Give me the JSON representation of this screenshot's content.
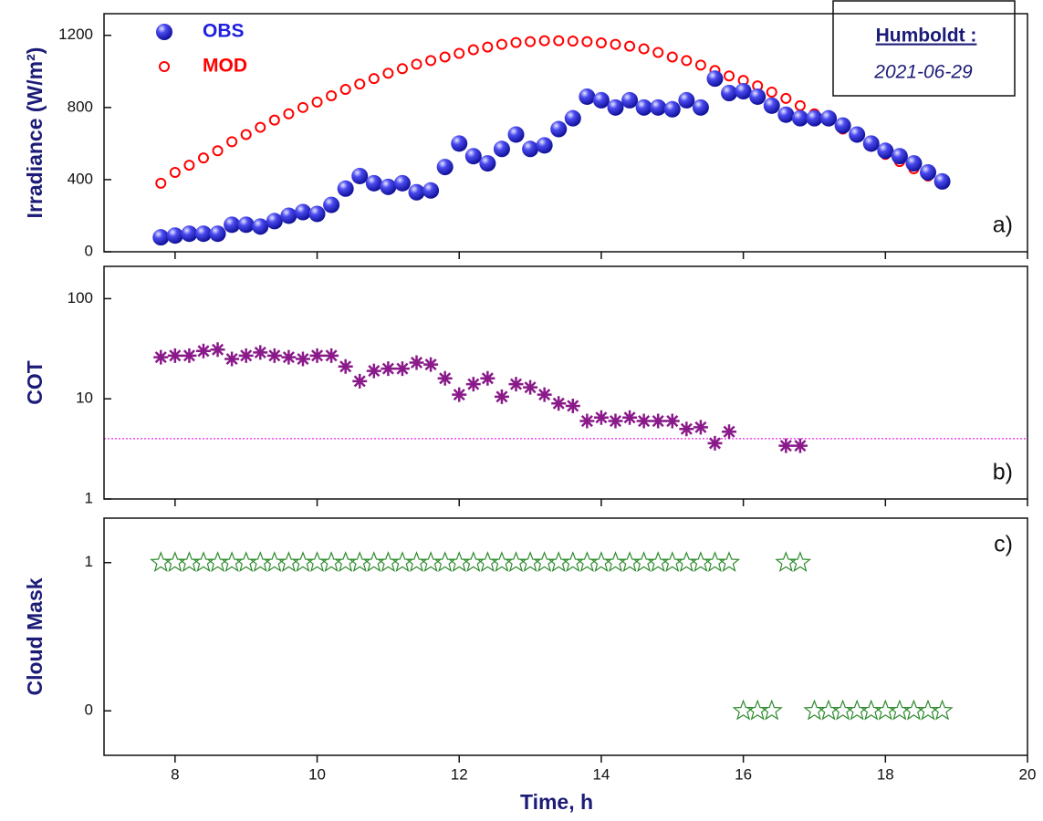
{
  "chart_data": [
    {
      "type": "scatter",
      "ylabel": "Irradiance (W/m²)",
      "panel_label": "a)",
      "station": "Humboldt :",
      "date": "2021-06-29",
      "xlim": [
        7,
        20
      ],
      "xticks": [
        8,
        10,
        12,
        14,
        16,
        18,
        20
      ],
      "ylim": [
        0,
        1320
      ],
      "yticks": [
        0,
        400,
        800,
        1200
      ],
      "x": [
        7.8,
        8.0,
        8.2,
        8.4,
        8.6,
        8.8,
        9.0,
        9.2,
        9.4,
        9.6,
        9.8,
        10.0,
        10.2,
        10.4,
        10.6,
        10.8,
        11.0,
        11.2,
        11.4,
        11.6,
        11.8,
        12.0,
        12.2,
        12.4,
        12.6,
        12.8,
        13.0,
        13.2,
        13.4,
        13.6,
        13.8,
        14.0,
        14.2,
        14.4,
        14.6,
        14.8,
        15.0,
        15.2,
        15.4,
        15.6,
        15.8,
        16.0,
        16.2,
        16.4,
        16.6,
        16.8,
        17.0,
        17.2,
        17.4,
        17.6,
        17.8,
        18.0,
        18.2,
        18.4,
        18.6,
        18.8
      ],
      "series": [
        {
          "name": "MOD",
          "color": "#ff0000",
          "marker": "circle",
          "values": [
            380,
            440,
            480,
            520,
            560,
            610,
            650,
            690,
            730,
            765,
            800,
            830,
            865,
            900,
            930,
            960,
            990,
            1015,
            1040,
            1060,
            1080,
            1100,
            1120,
            1135,
            1150,
            1160,
            1165,
            1170,
            1170,
            1168,
            1165,
            1158,
            1150,
            1140,
            1125,
            1105,
            1080,
            1060,
            1035,
            1005,
            975,
            950,
            920,
            885,
            850,
            810,
            765,
            725,
            680,
            635,
            585,
            540,
            500,
            460,
            420,
            390
          ]
        },
        {
          "name": "OBS",
          "color": "#2020e0",
          "marker": "sphere",
          "values": [
            80,
            90,
            100,
            100,
            100,
            150,
            150,
            140,
            170,
            200,
            220,
            210,
            260,
            350,
            420,
            380,
            360,
            380,
            330,
            340,
            470,
            600,
            530,
            490,
            570,
            650,
            570,
            590,
            680,
            740,
            860,
            840,
            800,
            840,
            800,
            800,
            790,
            840,
            800,
            960,
            880,
            890,
            860,
            810,
            760,
            740,
            740,
            740,
            700,
            650,
            600,
            560,
            530,
            490,
            440,
            390
          ]
        }
      ]
    },
    {
      "type": "scatter",
      "ylabel": "COT",
      "panel_label": "b)",
      "yscale": "log",
      "xlim": [
        7,
        20
      ],
      "xticks": [
        8,
        10,
        12,
        14,
        16,
        18,
        20
      ],
      "ylim": [
        1,
        210
      ],
      "yticks": [
        1,
        10,
        100
      ],
      "hline": 4,
      "hline_color": "#ee22ee",
      "x": [
        7.8,
        8.0,
        8.2,
        8.4,
        8.6,
        8.8,
        9.0,
        9.2,
        9.4,
        9.6,
        9.8,
        10.0,
        10.2,
        10.4,
        10.6,
        10.8,
        11.0,
        11.2,
        11.4,
        11.6,
        11.8,
        12.0,
        12.2,
        12.4,
        12.6,
        12.8,
        13.0,
        13.2,
        13.4,
        13.6,
        13.8,
        14.0,
        14.2,
        14.4,
        14.6,
        14.8,
        15.0,
        15.2,
        15.4,
        15.6,
        15.8,
        16.0,
        16.2,
        16.4,
        16.6,
        16.8
      ],
      "series": [
        {
          "color": "#8a1a8a",
          "marker": "asterisk",
          "values": [
            26,
            27,
            27,
            30,
            31,
            25,
            27,
            29,
            27,
            26,
            25,
            27,
            27,
            21,
            15,
            19,
            20,
            20,
            23,
            22,
            16,
            11,
            14,
            16,
            10.5,
            14,
            13,
            11,
            9,
            8.5,
            6,
            6.5,
            6,
            6.5,
            6,
            6,
            6,
            5,
            5.2,
            3.6,
            4.7,
            null,
            null,
            null,
            3.4,
            3.4
          ]
        }
      ]
    },
    {
      "type": "scatter",
      "ylabel": "Cloud Mask",
      "xlabel": "Time, h",
      "panel_label": "c)",
      "xlim": [
        7,
        20
      ],
      "xticks": [
        8,
        10,
        12,
        14,
        16,
        18,
        20
      ],
      "ylim": [
        -0.3,
        1.3
      ],
      "yticks": [
        0,
        1
      ],
      "x": [
        7.8,
        8.0,
        8.2,
        8.4,
        8.6,
        8.8,
        9.0,
        9.2,
        9.4,
        9.6,
        9.8,
        10.0,
        10.2,
        10.4,
        10.6,
        10.8,
        11.0,
        11.2,
        11.4,
        11.6,
        11.8,
        12.0,
        12.2,
        12.4,
        12.6,
        12.8,
        13.0,
        13.2,
        13.4,
        13.6,
        13.8,
        14.0,
        14.2,
        14.4,
        14.6,
        14.8,
        15.0,
        15.2,
        15.4,
        15.6,
        15.8,
        16.0,
        16.2,
        16.4,
        16.6,
        16.8,
        17.0,
        17.2,
        17.4,
        17.6,
        17.8,
        18.0,
        18.2,
        18.4,
        18.6,
        18.8
      ],
      "series": [
        {
          "color": "#2e8b2e",
          "marker": "star",
          "values": [
            1,
            1,
            1,
            1,
            1,
            1,
            1,
            1,
            1,
            1,
            1,
            1,
            1,
            1,
            1,
            1,
            1,
            1,
            1,
            1,
            1,
            1,
            1,
            1,
            1,
            1,
            1,
            1,
            1,
            1,
            1,
            1,
            1,
            1,
            1,
            1,
            1,
            1,
            1,
            1,
            1,
            0,
            0,
            0,
            1,
            1,
            0,
            0,
            0,
            0,
            0,
            0,
            0,
            0,
            0,
            0
          ]
        }
      ]
    }
  ]
}
